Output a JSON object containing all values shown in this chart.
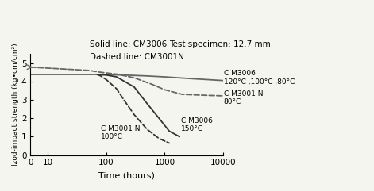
{
  "title_line1": "Solid line: CM3006",
  "title_line2": "Dashed line: CM3001N",
  "title_right": "Test specimen: 12.7 mm",
  "xlabel": "Time (hours)",
  "ylabel": "Izod-impact strength (kg•cm/cm²)",
  "ylim": [
    0,
    5.5
  ],
  "yticks": [
    0,
    1,
    2,
    3,
    4,
    5
  ],
  "curves": [
    {
      "label": "CM3006 120/100/80C",
      "style": "solid",
      "color": "#666666",
      "linewidth": 1.3,
      "x": [
        5,
        50,
        70,
        100,
        200,
        500,
        1000,
        3000,
        10000
      ],
      "y": [
        4.38,
        4.38,
        4.38,
        4.37,
        4.35,
        4.3,
        4.25,
        4.15,
        4.05
      ]
    },
    {
      "label": "CM3001N 80C",
      "style": "dashed",
      "color": "#666666",
      "linewidth": 1.3,
      "x": [
        5,
        50,
        80,
        150,
        300,
        600,
        1000,
        2000,
        5000,
        10000
      ],
      "y": [
        4.78,
        4.6,
        4.5,
        4.4,
        4.2,
        3.85,
        3.55,
        3.3,
        3.25,
        3.22
      ]
    },
    {
      "label": "CM3006 150C",
      "style": "solid",
      "color": "#333333",
      "linewidth": 1.3,
      "x": [
        70,
        100,
        150,
        300,
        500,
        800,
        1200,
        1800
      ],
      "y": [
        4.37,
        4.35,
        4.25,
        3.7,
        2.8,
        2.0,
        1.3,
        1.0
      ]
    },
    {
      "label": "CM3001N 100C",
      "style": "dashed",
      "color": "#333333",
      "linewidth": 1.3,
      "x": [
        70,
        80,
        100,
        150,
        200,
        300,
        500,
        800,
        1200
      ],
      "y": [
        4.38,
        4.3,
        4.1,
        3.6,
        3.0,
        2.2,
        1.4,
        0.9,
        0.65
      ]
    }
  ],
  "ann_cm3006_high": {
    "text": "C M3006\n120°C ,100°C ,80°C",
    "fontsize": 6.5
  },
  "ann_cm3001n_80": {
    "text": "C M3001 N\n80°C",
    "fontsize": 6.5
  },
  "ann_cm3006_150": {
    "text": "C M3006\n150°C",
    "fontsize": 6.5
  },
  "ann_cm3001n_100": {
    "text": "C M3001 N\n100°C",
    "fontsize": 6.5
  },
  "bg_color": "#f5f5f0",
  "title_fontsize": 7.5,
  "label_fontsize": 8,
  "tick_fontsize": 7.5
}
